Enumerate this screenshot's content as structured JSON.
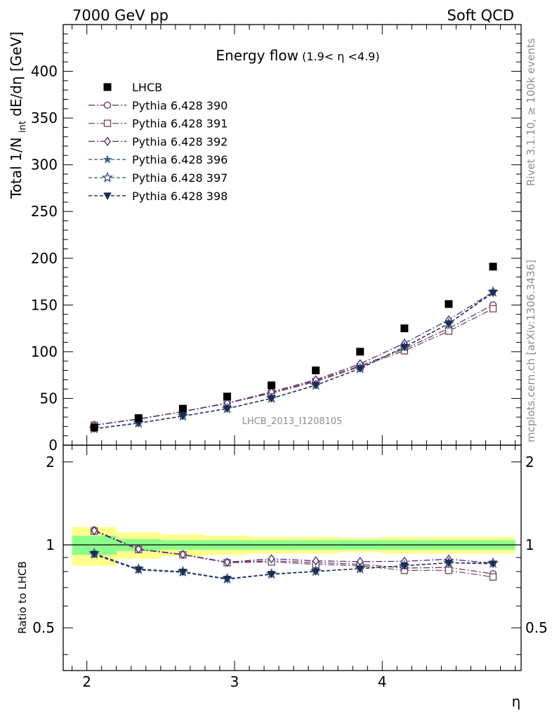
{
  "header": {
    "left_label": "7000 GeV pp",
    "right_label": "Soft QCD"
  },
  "side_labels": {
    "rivet": "Rivet 3.1.10, ≥ 100k events",
    "mcplots": "mcplots.cern.ch [arXiv:1306.3436]"
  },
  "chart_data": {
    "type": "scatter",
    "title_main": "Energy flow",
    "title_sub": "(1.9< η <4.9)",
    "watermark": "LHCB_2013_I1208105",
    "ylabel_main": "Total 1/N",
    "ylabel_sub": "int",
    "ylabel_unit": " dE/dη [GeV]",
    "xlabel": "η",
    "ratio_ylabel": "Ratio to LHCB",
    "xlim": [
      1.84,
      4.94
    ],
    "ylim": [
      0,
      450
    ],
    "ratio_ylim": [
      0.35,
      2.3
    ],
    "x_ticks": [
      "2",
      "3",
      "4"
    ],
    "y_ticks": [
      "0",
      "50",
      "100",
      "150",
      "200",
      "250",
      "300",
      "350",
      "400"
    ],
    "ratio_ticks": [
      "0.5",
      "1",
      "2"
    ],
    "legend_position": "top-left",
    "x": [
      2.05,
      2.35,
      2.65,
      2.95,
      3.25,
      3.55,
      3.85,
      4.15,
      4.45,
      4.75
    ],
    "bin_edges": [
      1.9,
      2.2,
      2.5,
      2.8,
      3.1,
      3.4,
      3.7,
      4.0,
      4.3,
      4.6,
      4.9
    ],
    "data": {
      "name": "LHCB",
      "values": [
        19,
        29,
        39,
        52,
        64,
        80,
        100,
        125,
        151,
        191
      ],
      "band_inner": [
        0.08,
        0.05,
        0.04,
        0.04,
        0.04,
        0.04,
        0.04,
        0.04,
        0.04,
        0.04
      ],
      "band_outer": [
        0.16,
        0.11,
        0.09,
        0.08,
        0.07,
        0.07,
        0.06,
        0.07,
        0.07,
        0.07
      ]
    },
    "series": [
      {
        "name": "Pythia 6.428 390",
        "color": "#6b3a68",
        "marker": "circle",
        "dash": "9,3,2,3",
        "values": [
          21.5,
          28,
          36,
          45,
          56,
          69,
          85,
          103,
          125,
          150
        ]
      },
      {
        "name": "Pythia 6.428 391",
        "color": "#7e4a5c",
        "marker": "square",
        "dash": "9,3,2,3",
        "values": [
          21.3,
          27.9,
          35.9,
          44.8,
          55.5,
          68,
          84,
          101,
          122,
          146
        ]
      },
      {
        "name": "Pythia 6.428 392",
        "color": "#4e2f7a",
        "marker": "diamond",
        "dash": "9,3,2,3",
        "values": [
          21.4,
          28,
          36,
          45,
          57,
          70,
          87,
          109,
          134,
          164
        ]
      },
      {
        "name": "Pythia 6.428 396",
        "color": "#3e6a7e",
        "marker": "star",
        "dash": "5,3",
        "values": [
          17.5,
          23.5,
          31,
          39,
          50,
          64,
          82,
          105,
          130,
          164
        ]
      },
      {
        "name": "Pythia 6.428 397",
        "color": "#3a5a7e",
        "marker": "star-open",
        "dash": "5,3",
        "values": [
          17.7,
          23.7,
          31.2,
          39.2,
          50.2,
          64.2,
          82,
          105,
          130,
          164
        ]
      },
      {
        "name": "Pythia 6.428 398",
        "color": "#1f2a55",
        "marker": "tri-down",
        "dash": "5,3",
        "values": [
          17.6,
          23.6,
          31.1,
          39.1,
          50.1,
          64.1,
          82,
          105,
          130,
          163
        ]
      }
    ]
  }
}
